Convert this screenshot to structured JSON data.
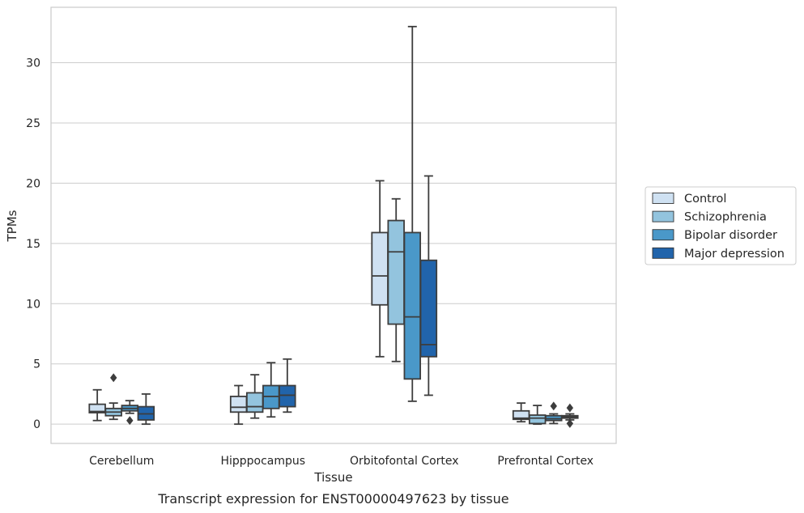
{
  "chart_data": {
    "type": "box",
    "title": "",
    "caption": "Transcript expression for ENST00000497623 by tissue",
    "xlabel": "Tissue",
    "ylabel": "TPMs",
    "ylim": [
      -1.6,
      34.6
    ],
    "yticks": [
      0,
      5,
      10,
      15,
      20,
      25,
      30
    ],
    "grid": true,
    "legend_position": "right",
    "categories": [
      "Cerebellum",
      "Hipppocampus",
      "Orbitofontal Cortex",
      "Prefrontal Cortex"
    ],
    "series": [
      {
        "name": "Control",
        "color": "#cfe1f2",
        "boxes": [
          {
            "whisker_low": 0.3,
            "q1": 0.95,
            "median": 1.05,
            "q3": 1.65,
            "whisker_high": 2.85,
            "outliers": []
          },
          {
            "whisker_low": 0.0,
            "q1": 1.0,
            "median": 1.4,
            "q3": 2.3,
            "whisker_high": 3.2,
            "outliers": []
          },
          {
            "whisker_low": 5.6,
            "q1": 9.9,
            "median": 12.3,
            "q3": 15.9,
            "whisker_high": 20.2,
            "outliers": []
          },
          {
            "whisker_low": 0.2,
            "q1": 0.4,
            "median": 0.5,
            "q3": 1.1,
            "whisker_high": 1.75,
            "outliers": []
          }
        ]
      },
      {
        "name": "Schizophrenia",
        "color": "#93c4de",
        "boxes": [
          {
            "whisker_low": 0.4,
            "q1": 0.7,
            "median": 1.0,
            "q3": 1.3,
            "whisker_high": 1.75,
            "outliers": [
              3.85
            ]
          },
          {
            "whisker_low": 0.5,
            "q1": 1.0,
            "median": 1.45,
            "q3": 2.6,
            "whisker_high": 4.1,
            "outliers": []
          },
          {
            "whisker_low": 5.2,
            "q1": 8.3,
            "median": 14.3,
            "q3": 16.9,
            "whisker_high": 18.7,
            "outliers": []
          },
          {
            "whisker_low": 0.0,
            "q1": 0.05,
            "median": 0.5,
            "q3": 0.75,
            "whisker_high": 1.55,
            "outliers": []
          }
        ]
      },
      {
        "name": "Bipolar disorder",
        "color": "#4a98c9",
        "boxes": [
          {
            "whisker_low": 0.9,
            "q1": 1.1,
            "median": 1.3,
            "q3": 1.55,
            "whisker_high": 1.95,
            "outliers": [
              0.3
            ]
          },
          {
            "whisker_low": 0.6,
            "q1": 1.3,
            "median": 2.3,
            "q3": 3.2,
            "whisker_high": 5.1,
            "outliers": []
          },
          {
            "whisker_low": 1.9,
            "q1": 3.75,
            "median": 8.9,
            "q3": 15.9,
            "whisker_high": 33.0,
            "outliers": []
          },
          {
            "whisker_low": 0.05,
            "q1": 0.3,
            "median": 0.45,
            "q3": 0.7,
            "whisker_high": 0.85,
            "outliers": [
              1.5
            ]
          }
        ]
      },
      {
        "name": "Major depression",
        "color": "#2164ab",
        "boxes": [
          {
            "whisker_low": 0.0,
            "q1": 0.35,
            "median": 0.85,
            "q3": 1.45,
            "whisker_high": 2.5,
            "outliers": []
          },
          {
            "whisker_low": 1.0,
            "q1": 1.45,
            "median": 2.4,
            "q3": 3.2,
            "whisker_high": 5.4,
            "outliers": []
          },
          {
            "whisker_low": 2.4,
            "q1": 5.6,
            "median": 6.6,
            "q3": 13.6,
            "whisker_high": 20.6,
            "outliers": []
          },
          {
            "whisker_low": 0.35,
            "q1": 0.5,
            "median": 0.6,
            "q3": 0.7,
            "whisker_high": 0.85,
            "outliers": [
              1.35,
              0.05
            ]
          }
        ]
      }
    ]
  }
}
